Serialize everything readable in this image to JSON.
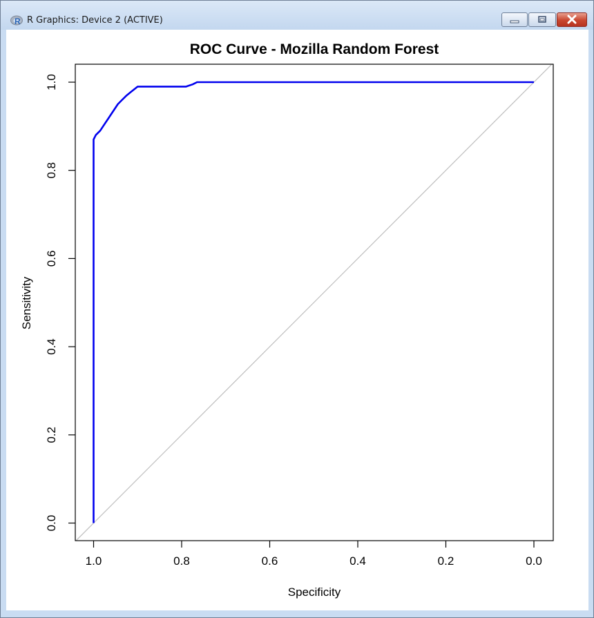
{
  "window": {
    "title": "R Graphics: Device 2 (ACTIVE)",
    "app_icon": "r-logo-icon",
    "controls": [
      "minimize-icon",
      "maximize-icon",
      "close-icon"
    ]
  },
  "chart_data": {
    "type": "line",
    "title": "ROC Curve - Mozilla Random Forest",
    "xlabel": "Specificity",
    "ylabel": "Sensitivity",
    "xlim": [
      1.0,
      0.0
    ],
    "ylim": [
      0.0,
      1.0
    ],
    "x_reversed": true,
    "xticks": [
      1.0,
      0.8,
      0.6,
      0.4,
      0.2,
      0.0
    ],
    "xtick_labels": [
      "1.0",
      "0.8",
      "0.6",
      "0.4",
      "0.2",
      "0.0"
    ],
    "yticks": [
      0.0,
      0.2,
      0.4,
      0.6,
      0.8,
      1.0
    ],
    "ytick_labels": [
      "0.0",
      "0.2",
      "0.4",
      "0.6",
      "0.8",
      "1.0"
    ],
    "grid": false,
    "series": [
      {
        "color": "#0000ee",
        "x": [
          1.0,
          1.0,
          0.995,
          0.985,
          0.975,
          0.965,
          0.955,
          0.945,
          0.935,
          0.925,
          0.915,
          0.9,
          0.88,
          0.85,
          0.82,
          0.79,
          0.775,
          0.765,
          0.75,
          0.7,
          0.6,
          0.5,
          0.4,
          0.3,
          0.2,
          0.1,
          0.0
        ],
        "y": [
          0.0,
          0.87,
          0.88,
          0.89,
          0.905,
          0.92,
          0.935,
          0.95,
          0.96,
          0.97,
          0.978,
          0.99,
          0.99,
          0.99,
          0.99,
          0.99,
          0.995,
          1.0,
          1.0,
          1.0,
          1.0,
          1.0,
          1.0,
          1.0,
          1.0,
          1.0,
          1.0
        ]
      }
    ],
    "reference_line": {
      "color": "#bebebe",
      "x": [
        1.0,
        0.0
      ],
      "y": [
        0.0,
        1.0
      ]
    }
  }
}
